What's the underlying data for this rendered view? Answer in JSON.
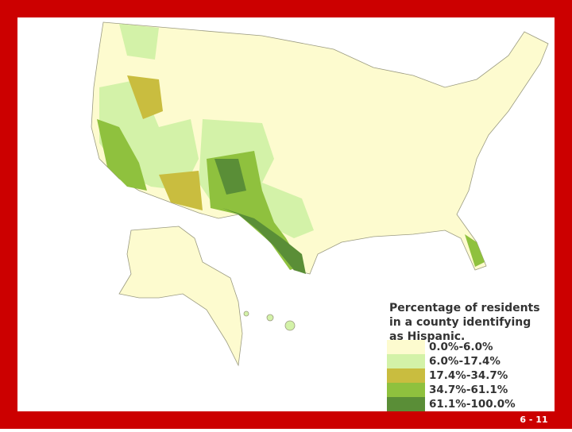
{
  "legend": {
    "title_lines": [
      "Percentage of residents",
      "in a county identifying",
      "as Hispanic."
    ],
    "items": [
      {
        "label": "0.0%-6.0%",
        "color": "#fdfbcf"
      },
      {
        "label": "6.0%-17.4%",
        "color": "#d3f2a8"
      },
      {
        "label": "17.4%-34.7%",
        "color": "#c9bd3f"
      },
      {
        "label": "34.7%-61.1%",
        "color": "#8fc13e"
      },
      {
        "label": "61.1%-100.0%",
        "color": "#5a8e37"
      }
    ]
  },
  "footer": {
    "slide_number": "6 - 11"
  }
}
